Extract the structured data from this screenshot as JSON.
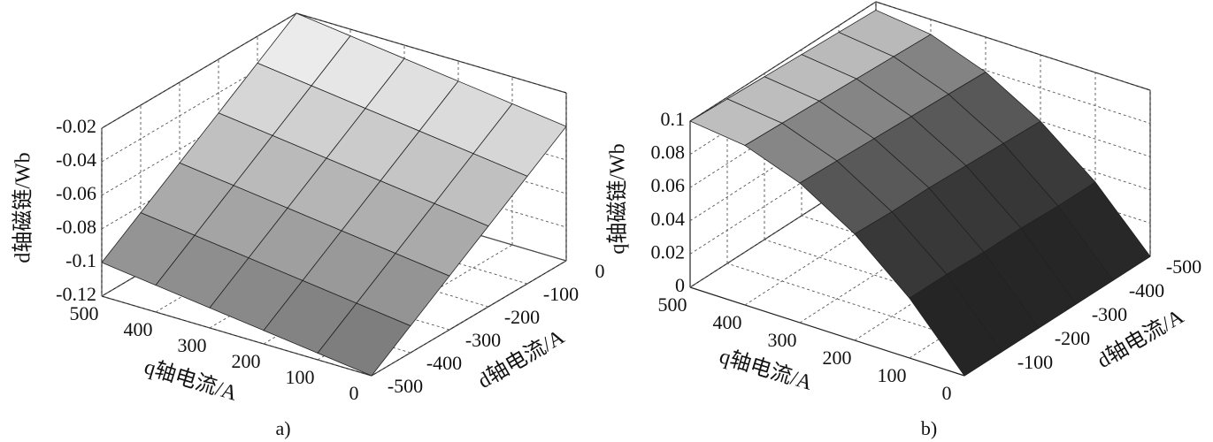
{
  "chart_data": [
    {
      "type": "surface",
      "caption": "a)",
      "xlabel": "q轴电流/A",
      "ylabel": "d轴电流/A",
      "zlabel": "d轴磁链/Wb",
      "x": [
        0,
        100,
        200,
        300,
        400,
        500
      ],
      "y": [
        -500,
        -400,
        -300,
        -200,
        -100,
        0
      ],
      "z": [
        [
          -0.12,
          -0.104,
          -0.088,
          -0.072,
          -0.056,
          -0.04
        ],
        [
          -0.116,
          -0.1,
          -0.084,
          -0.068,
          -0.052,
          -0.036
        ],
        [
          -0.112,
          -0.096,
          -0.08,
          -0.064,
          -0.048,
          -0.032
        ],
        [
          -0.108,
          -0.092,
          -0.076,
          -0.06,
          -0.044,
          -0.028
        ],
        [
          -0.104,
          -0.088,
          -0.072,
          -0.056,
          -0.04,
          -0.024
        ],
        [
          -0.1,
          -0.084,
          -0.068,
          -0.052,
          -0.036,
          -0.02
        ]
      ],
      "xlim": [
        0,
        500
      ],
      "ylim": [
        -500,
        0
      ],
      "zlim": [
        -0.12,
        -0.02
      ],
      "xticks": [
        0,
        100,
        200,
        300,
        400,
        500
      ],
      "yticks": [
        -500,
        -400,
        -300,
        -200,
        -100,
        0
      ],
      "zticks": [
        -0.12,
        -0.1,
        -0.08,
        -0.06,
        -0.04,
        -0.02
      ],
      "grid": true,
      "colormap": "gray"
    },
    {
      "type": "surface",
      "caption": "b)",
      "xlabel": "q轴电流/A",
      "ylabel": "d轴电流/A",
      "zlabel": "q轴磁链/Wb",
      "x": [
        0,
        100,
        200,
        300,
        400,
        500
      ],
      "y": [
        0,
        -100,
        -200,
        -300,
        -400,
        -500
      ],
      "z": [
        [
          0,
          0,
          0,
          0,
          0,
          0
        ],
        [
          0.036,
          0.036,
          0.035,
          0.035,
          0.034,
          0.034
        ],
        [
          0.064,
          0.063,
          0.063,
          0.062,
          0.061,
          0.06
        ],
        [
          0.084,
          0.083,
          0.082,
          0.081,
          0.08,
          0.079
        ],
        [
          0.096,
          0.095,
          0.094,
          0.093,
          0.092,
          0.091
        ],
        [
          0.1,
          0.099,
          0.098,
          0.097,
          0.096,
          0.095
        ]
      ],
      "xlim": [
        0,
        500
      ],
      "ylim": [
        0,
        -500
      ],
      "zlim": [
        0,
        0.1
      ],
      "xticks": [
        0,
        100,
        200,
        300,
        400,
        500
      ],
      "yticks": [
        -100,
        -200,
        -300,
        -400,
        -500
      ],
      "zticks": [
        0,
        0.02,
        0.04,
        0.06,
        0.08,
        0.1
      ],
      "grid": true,
      "colormap": "gray"
    }
  ]
}
